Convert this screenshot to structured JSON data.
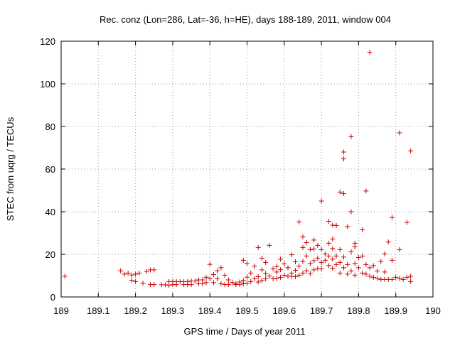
{
  "chart_data": {
    "type": "scatter",
    "title": "Rec. conz (Lon=286, Lat=-36, h=HE), days 188-189, 2011, window 004",
    "xlabel": "GPS time / Days of year 2011",
    "ylabel": "STEC from uqrg / TECUs",
    "xlim": [
      189,
      190
    ],
    "ylim": [
      0,
      120
    ],
    "xticks": [
      "189",
      "189.1",
      "189.2",
      "189.3",
      "189.4",
      "189.5",
      "189.6",
      "189.7",
      "189.8",
      "189.9",
      "190"
    ],
    "yticks": [
      "0",
      "20",
      "40",
      "60",
      "80",
      "100",
      "120"
    ],
    "grid": true,
    "marker": "+",
    "color": "#cc0000",
    "series": [
      {
        "name": "STEC",
        "points": [
          [
            189.01,
            9.7
          ],
          [
            189.16,
            12.3
          ],
          [
            189.17,
            10.7
          ],
          [
            189.18,
            11.2
          ],
          [
            189.19,
            10.3
          ],
          [
            189.19,
            7.8
          ],
          [
            189.2,
            10.7
          ],
          [
            189.2,
            7.2
          ],
          [
            189.21,
            11.2
          ],
          [
            189.22,
            6.5
          ],
          [
            189.23,
            12.0
          ],
          [
            189.24,
            12.7
          ],
          [
            189.24,
            5.8
          ],
          [
            189.25,
            12.7
          ],
          [
            189.25,
            5.8
          ],
          [
            189.27,
            5.7
          ],
          [
            189.28,
            5.7
          ],
          [
            189.29,
            7.2
          ],
          [
            189.29,
            5.5
          ],
          [
            189.3,
            7.2
          ],
          [
            189.3,
            5.8
          ],
          [
            189.31,
            7.2
          ],
          [
            189.31,
            5.8
          ],
          [
            189.32,
            7.2
          ],
          [
            189.33,
            7.2
          ],
          [
            189.33,
            5.8
          ],
          [
            189.34,
            7.2
          ],
          [
            189.34,
            5.8
          ],
          [
            189.35,
            7.5
          ],
          [
            189.35,
            5.8
          ],
          [
            189.36,
            7.5
          ],
          [
            189.37,
            8.0
          ],
          [
            189.37,
            6.2
          ],
          [
            189.38,
            8.0
          ],
          [
            189.38,
            6.2
          ],
          [
            189.39,
            9.2
          ],
          [
            189.39,
            6.7
          ],
          [
            189.4,
            15.3
          ],
          [
            189.4,
            8.5
          ],
          [
            189.41,
            10.5
          ],
          [
            189.41,
            6.7
          ],
          [
            189.42,
            12.3
          ],
          [
            189.42,
            8.5
          ],
          [
            189.43,
            13.7
          ],
          [
            189.43,
            6.2
          ],
          [
            189.44,
            10.2
          ],
          [
            189.44,
            5.8
          ],
          [
            189.45,
            8.0
          ],
          [
            189.45,
            5.8
          ],
          [
            189.46,
            6.8
          ],
          [
            189.47,
            6.2
          ],
          [
            189.47,
            5.8
          ],
          [
            189.48,
            7.0
          ],
          [
            189.48,
            5.8
          ],
          [
            189.49,
            17.2
          ],
          [
            189.49,
            7.7
          ],
          [
            189.49,
            6.2
          ],
          [
            189.5,
            15.7
          ],
          [
            189.5,
            9.3
          ],
          [
            189.5,
            6.5
          ],
          [
            189.51,
            11.2
          ],
          [
            189.51,
            7.2
          ],
          [
            189.52,
            14.5
          ],
          [
            189.52,
            8.5
          ],
          [
            189.53,
            23.2
          ],
          [
            189.53,
            9.5
          ],
          [
            189.53,
            7.0
          ],
          [
            189.54,
            18.2
          ],
          [
            189.54,
            12.7
          ],
          [
            189.54,
            7.7
          ],
          [
            189.55,
            16.2
          ],
          [
            189.55,
            11.0
          ],
          [
            189.55,
            8.5
          ],
          [
            189.56,
            24.2
          ],
          [
            189.56,
            9.8
          ],
          [
            189.57,
            13.2
          ],
          [
            189.57,
            8.5
          ],
          [
            189.58,
            14.3
          ],
          [
            189.58,
            11.7
          ],
          [
            189.58,
            8.7
          ],
          [
            189.59,
            17.7
          ],
          [
            189.59,
            12.8
          ],
          [
            189.59,
            9.2
          ],
          [
            189.6,
            15.5
          ],
          [
            189.6,
            10.2
          ],
          [
            189.61,
            13.7
          ],
          [
            189.61,
            9.7
          ],
          [
            189.62,
            19.8
          ],
          [
            189.62,
            11.2
          ],
          [
            189.62,
            9.7
          ],
          [
            189.63,
            16.5
          ],
          [
            189.63,
            12.5
          ],
          [
            189.63,
            9.5
          ],
          [
            189.64,
            35.2
          ],
          [
            189.64,
            14.5
          ],
          [
            189.64,
            10.2
          ],
          [
            189.65,
            28.2
          ],
          [
            189.65,
            23.2
          ],
          [
            189.65,
            16.7
          ],
          [
            189.65,
            11.2
          ],
          [
            189.66,
            25.5
          ],
          [
            189.66,
            19.2
          ],
          [
            189.66,
            12.3
          ],
          [
            189.67,
            22.2
          ],
          [
            189.67,
            15.7
          ],
          [
            189.67,
            11.0
          ],
          [
            189.68,
            26.7
          ],
          [
            189.68,
            22.5
          ],
          [
            189.68,
            17.0
          ],
          [
            189.68,
            12.7
          ],
          [
            189.69,
            24.2
          ],
          [
            189.69,
            18.2
          ],
          [
            189.69,
            13.3
          ],
          [
            189.7,
            45.0
          ],
          [
            189.7,
            22.2
          ],
          [
            189.7,
            16.2
          ],
          [
            189.7,
            13.2
          ],
          [
            189.71,
            20.2
          ],
          [
            189.71,
            17.2
          ],
          [
            189.72,
            35.5
          ],
          [
            189.72,
            25.2
          ],
          [
            189.72,
            19.2
          ],
          [
            189.72,
            14.7
          ],
          [
            189.73,
            33.7
          ],
          [
            189.73,
            27.2
          ],
          [
            189.73,
            22.7
          ],
          [
            189.73,
            17.7
          ],
          [
            189.73,
            13.5
          ],
          [
            189.74,
            33.5
          ],
          [
            189.74,
            19.2
          ],
          [
            189.74,
            15.2
          ],
          [
            189.75,
            49.2
          ],
          [
            189.75,
            22.2
          ],
          [
            189.75,
            16.2
          ],
          [
            189.75,
            11.2
          ],
          [
            189.76,
            68.0
          ],
          [
            189.76,
            64.8
          ],
          [
            189.76,
            48.5
          ],
          [
            189.76,
            18.7
          ],
          [
            189.76,
            13.7
          ],
          [
            189.77,
            33.0
          ],
          [
            189.77,
            15.2
          ],
          [
            189.77,
            10.7
          ],
          [
            189.78,
            75.2
          ],
          [
            189.78,
            40.0
          ],
          [
            189.78,
            21.2
          ],
          [
            189.78,
            12.2
          ],
          [
            189.79,
            25.2
          ],
          [
            189.79,
            23.5
          ],
          [
            189.79,
            15.7
          ],
          [
            189.79,
            10.2
          ],
          [
            189.8,
            18.5
          ],
          [
            189.8,
            13.7
          ],
          [
            189.81,
            31.5
          ],
          [
            189.81,
            19.2
          ],
          [
            189.81,
            11.2
          ],
          [
            189.82,
            49.7
          ],
          [
            189.82,
            15.2
          ],
          [
            189.82,
            10.7
          ],
          [
            189.83,
            114.8
          ],
          [
            189.83,
            13.7
          ],
          [
            189.83,
            9.7
          ],
          [
            189.84,
            14.7
          ],
          [
            189.84,
            9.2
          ],
          [
            189.85,
            12.2
          ],
          [
            189.85,
            8.7
          ],
          [
            189.86,
            16.7
          ],
          [
            189.86,
            8.2
          ],
          [
            189.87,
            20.2
          ],
          [
            189.87,
            11.7
          ],
          [
            189.87,
            8.2
          ],
          [
            189.88,
            25.8
          ],
          [
            189.88,
            8.2
          ],
          [
            189.89,
            37.3
          ],
          [
            189.89,
            17.2
          ],
          [
            189.89,
            8.2
          ],
          [
            189.9,
            9.2
          ],
          [
            189.91,
            77.0
          ],
          [
            189.91,
            22.2
          ],
          [
            189.91,
            8.7
          ],
          [
            189.92,
            8.2
          ],
          [
            189.93,
            35.0
          ],
          [
            189.93,
            9.2
          ],
          [
            189.94,
            68.5
          ],
          [
            189.94,
            9.7
          ],
          [
            189.94,
            7.2
          ]
        ]
      }
    ]
  }
}
